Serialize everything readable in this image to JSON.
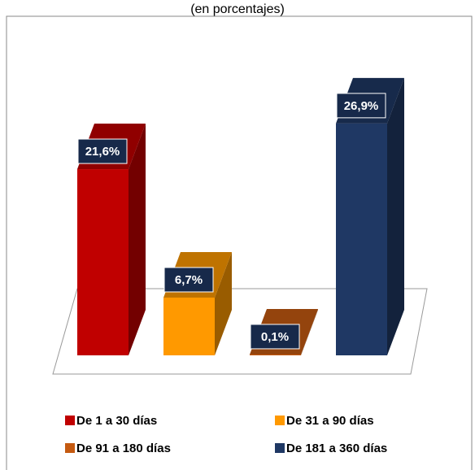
{
  "chart_data": {
    "type": "bar3d",
    "subtitle": "(en porcentajes)",
    "categories": [
      "De 1 a 30 días",
      "De 31 a 90 días",
      "De 91 a 180 días",
      "De 181 a 360 días"
    ],
    "values": [
      21.6,
      6.7,
      0.1,
      26.9
    ],
    "value_labels": [
      "21,6%",
      "6,7%",
      "0,1%",
      "26,9%"
    ],
    "colors": [
      "#c00000",
      "#ff9900",
      "#c55a11",
      "#1f3864"
    ]
  }
}
